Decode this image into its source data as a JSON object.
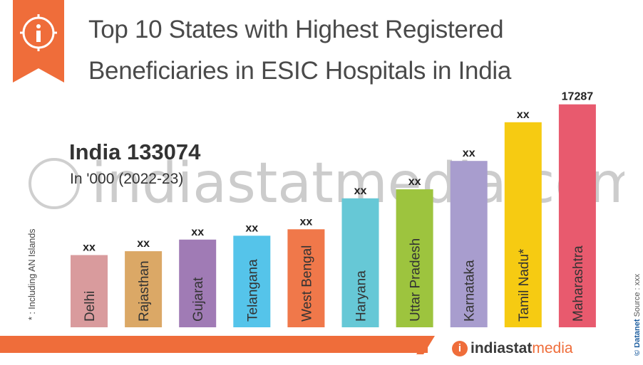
{
  "title": {
    "line1": "Top 10 States with Highest Registered",
    "line2": "Beneficiaries in ESIC Hospitals in India"
  },
  "summary": {
    "total": "India 133074",
    "unit": "In '000 (2022-23)"
  },
  "footnote": "* : Including AN Islands",
  "source": {
    "brand": "© Datanet",
    "label": "Source : xxx"
  },
  "watermark": "indiastatmedia.com",
  "logo": {
    "icon": "info-icon",
    "name": "indiastat",
    "accent": "media"
  },
  "colors": {
    "accent": "#ef6d3a",
    "title": "#4a4a4a"
  },
  "chart_data": {
    "type": "bar",
    "title": "Top 10 States with Highest Registered Beneficiaries in ESIC Hospitals in India",
    "xlabel": "",
    "ylabel": "",
    "categories": [
      "Delhi",
      "Rajasthan",
      "Gujarat",
      "Telangana",
      "West Bengal",
      "Haryana",
      "Uttar Pradesh",
      "Karnataka",
      "Tamil Nadu*",
      "Maharashtra"
    ],
    "values": [
      5600,
      5900,
      6800,
      7100,
      7600,
      10000,
      10700,
      12900,
      15900,
      17287
    ],
    "value_labels": [
      "xx",
      "xx",
      "xx",
      "xx",
      "xx",
      "xx",
      "xx",
      "xx",
      "xx",
      "17287"
    ],
    "colors": [
      "#d99b9d",
      "#dba866",
      "#a07bb5",
      "#55c4ea",
      "#f0784a",
      "#66c8d6",
      "#9dc43e",
      "#a89dce",
      "#f6cb12",
      "#e85a6e"
    ],
    "ylim": [
      0,
      17600
    ],
    "grid": false,
    "legend": "none"
  }
}
